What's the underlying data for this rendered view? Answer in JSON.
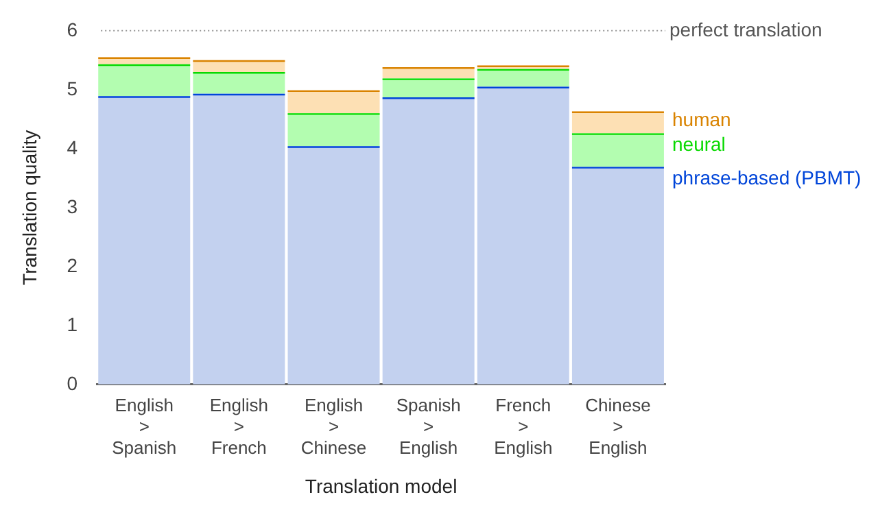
{
  "chart_data": {
    "type": "bar",
    "stacked": true,
    "xlabel": "Translation model",
    "ylabel": "Translation quality",
    "categories": [
      "English > Spanish",
      "English > French",
      "English > Chinese",
      "Spanish > English",
      "French > English",
      "Chinese > English"
    ],
    "series": [
      {
        "name": "phrase-based (PBMT)",
        "color": "#c3d1ef",
        "values": [
          4.89,
          4.93,
          4.04,
          4.87,
          5.05,
          3.69
        ]
      },
      {
        "name": "neural",
        "color": "#b3fdb0",
        "values": [
          0.54,
          0.37,
          0.56,
          0.32,
          0.3,
          0.57
        ]
      },
      {
        "name": "human",
        "color": "#fde0b4",
        "values": [
          0.12,
          0.2,
          0.39,
          0.19,
          0.06,
          0.37
        ]
      }
    ],
    "ylim": [
      0,
      6
    ],
    "yticks": [
      0,
      1,
      2,
      3,
      4,
      5,
      6
    ],
    "grid": false,
    "legend": "right",
    "ref_lines": [
      {
        "axis": "y",
        "value": 6,
        "label": "perfect translation",
        "color": "#999999",
        "line_style": "dotted"
      }
    ]
  }
}
